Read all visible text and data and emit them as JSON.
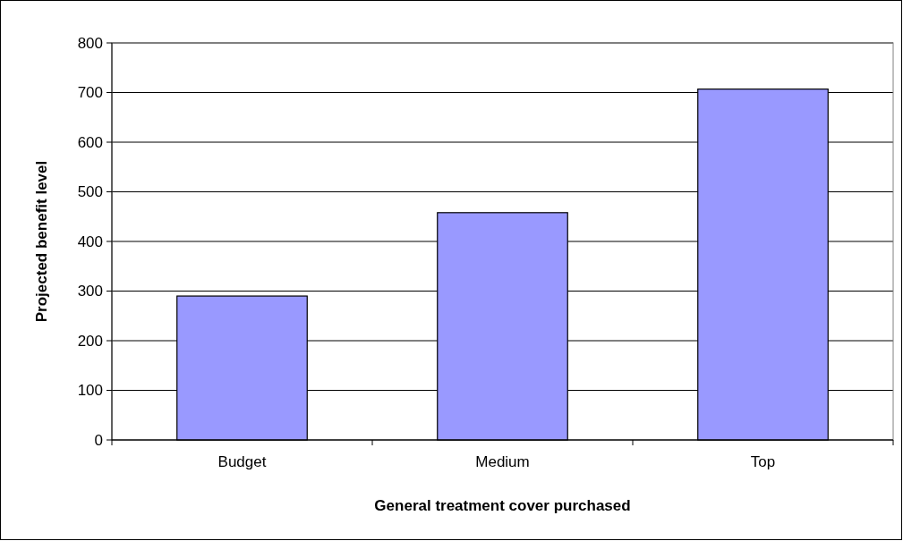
{
  "chart_data": {
    "type": "bar",
    "xlabel": "General treatment cover purchased",
    "ylabel": "Projected benefit level",
    "categories": [
      "Budget",
      "Medium",
      "Top"
    ],
    "values": [
      290,
      458,
      707
    ],
    "color": "#9999ff",
    "ylim": [
      0,
      800
    ],
    "yticks": [
      0,
      100,
      200,
      300,
      400,
      500,
      600,
      700,
      800
    ],
    "grid": "y"
  }
}
